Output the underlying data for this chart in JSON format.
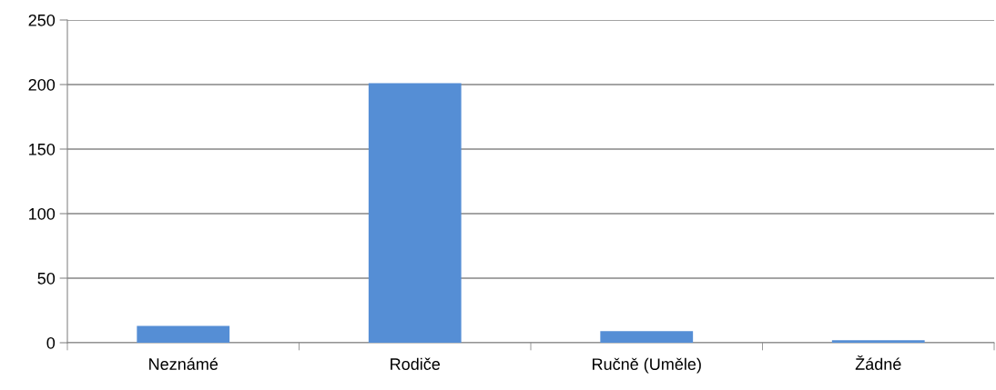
{
  "chart_data": {
    "type": "bar",
    "categories": [
      "Neznámé",
      "Rodiče",
      "Ručně (Uměle)",
      "Žádné"
    ],
    "values": [
      13,
      201,
      9,
      2
    ],
    "color": "#558ed5",
    "ylim": [
      0,
      250
    ],
    "yticks": [
      0,
      50,
      100,
      150,
      200,
      250
    ],
    "grid": "y"
  }
}
